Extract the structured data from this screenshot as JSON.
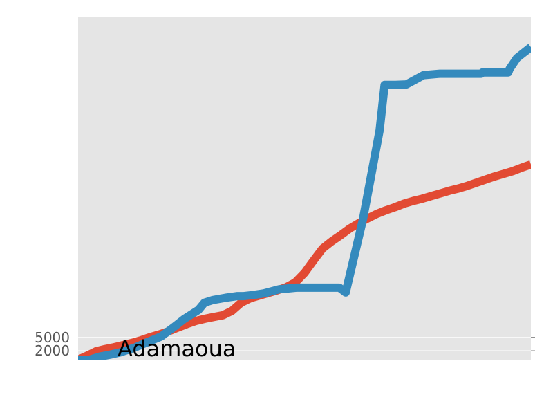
{
  "chart_data": {
    "type": "line",
    "title": "",
    "xlabel": "",
    "ylabel": "",
    "ylim": [
      0,
      77000
    ],
    "xlim": [
      0,
      100
    ],
    "grid": true,
    "yticks": [
      {
        "value": 2000,
        "label": "2000"
      },
      {
        "value": 5000,
        "label": "5000"
      }
    ],
    "annotation": {
      "text": "Adamaoua",
      "x": 8.7,
      "y": 2300
    },
    "series": [
      {
        "color": "#E24A33",
        "x": [
          0,
          2,
          4,
          6,
          8,
          10,
          12,
          14,
          16,
          18,
          20,
          22,
          24,
          26,
          28,
          30,
          32,
          34,
          36,
          38,
          40,
          42,
          44,
          46,
          48,
          50,
          52,
          54,
          56,
          58,
          60,
          62,
          64,
          66,
          68,
          70,
          72,
          74,
          76,
          78,
          80,
          82,
          84,
          86,
          88,
          90,
          92,
          94,
          96,
          98,
          100
        ],
        "y": [
          0,
          900,
          1900,
          2400,
          2800,
          3300,
          3800,
          4400,
          5100,
          5700,
          6400,
          7200,
          8000,
          8700,
          9200,
          9600,
          10000,
          11000,
          12800,
          13800,
          14400,
          15000,
          15600,
          16300,
          17400,
          19500,
          22300,
          25000,
          26600,
          28000,
          29500,
          30700,
          31800,
          32800,
          33600,
          34300,
          35100,
          35700,
          36200,
          36800,
          37400,
          38000,
          38500,
          39100,
          39800,
          40500,
          41200,
          41800,
          42400,
          43200,
          43900
        ]
      },
      {
        "color": "#348ABD",
        "x": [
          0,
          2.6,
          4.8,
          7,
          9.5,
          12.7,
          15.7,
          18.3,
          21,
          23.5,
          26.6,
          27.9,
          29.7,
          32.5,
          35.2,
          36.6,
          38.3,
          41,
          44.3,
          48.2,
          51.3,
          54.6,
          57.7,
          59.1,
          62.9,
          66.6,
          67.7,
          70.1,
          72.5,
          76.3,
          79.9,
          82.5,
          83.9,
          87.4,
          89,
          89.3,
          91.9,
          95,
          95.3,
          96.9,
          100
        ],
        "y": [
          0,
          0,
          700,
          1100,
          1700,
          2800,
          4100,
          5200,
          7200,
          9200,
          11200,
          12800,
          13400,
          13900,
          14300,
          14300,
          14500,
          14900,
          15800,
          16200,
          16200,
          16200,
          16200,
          15100,
          31500,
          51600,
          61800,
          61800,
          61900,
          64000,
          64300,
          64300,
          64300,
          64300,
          64300,
          64600,
          64600,
          64600,
          65400,
          67800,
          70300
        ]
      }
    ]
  }
}
